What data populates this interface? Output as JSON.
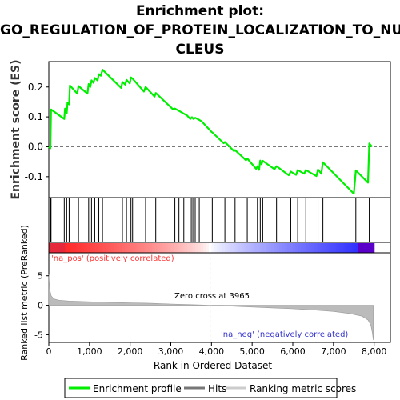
{
  "chart_data": {
    "type": "line",
    "title_lines": [
      "Enrichment plot:",
      "GO_REGULATION_OF_PROTEIN_LOCALIZATION_TO_NU",
      "CLEUS"
    ],
    "xlabel": "Rank in Ordered Dataset",
    "xlim": [
      0,
      8400
    ],
    "x_ticks": [
      0,
      1000,
      2000,
      3000,
      4000,
      5000,
      6000,
      7000,
      8000
    ],
    "x_tick_labels": [
      "0",
      "1,000",
      "2,000",
      "3,000",
      "4,000",
      "5,000",
      "6,000",
      "7,000",
      "8,000"
    ],
    "enrichment_panel": {
      "ylabel": "Enrichment score (ES)",
      "ylim": [
        -0.17,
        0.285
      ],
      "y_ticks": [
        -0.1,
        0.0,
        0.1,
        0.2
      ],
      "y_tick_labels": [
        "-0.1",
        "0.0",
        "0.1",
        "0.2"
      ],
      "series": [
        {
          "name": "Enrichment profile",
          "color": "#00ee00",
          "x": [
            0,
            40,
            55,
            380,
            400,
            440,
            460,
            500,
            520,
            700,
            730,
            950,
            980,
            1020,
            1050,
            1100,
            1130,
            1200,
            1230,
            1280,
            1320,
            1780,
            1810,
            1880,
            1910,
            1990,
            2020,
            2060,
            2340,
            2380,
            2600,
            2630,
            3050,
            3100,
            3400,
            3480,
            3520,
            3560,
            3600,
            3700,
            3760,
            4000,
            4020,
            4300,
            4330,
            4550,
            4580,
            4850,
            4880,
            5100,
            5130,
            5170,
            5200,
            5230,
            5260,
            5550,
            5600,
            5900,
            5950,
            6080,
            6120,
            6280,
            6320,
            6580,
            6620,
            6700,
            6740,
            7500,
            7550,
            7850,
            7880,
            7950
          ],
          "y": [
            0.0,
            -0.005,
            0.125,
            0.093,
            0.128,
            0.112,
            0.148,
            0.142,
            0.205,
            0.178,
            0.203,
            0.178,
            0.21,
            0.2,
            0.222,
            0.214,
            0.23,
            0.222,
            0.243,
            0.238,
            0.258,
            0.197,
            0.217,
            0.208,
            0.224,
            0.212,
            0.232,
            0.228,
            0.185,
            0.2,
            0.168,
            0.18,
            0.126,
            0.128,
            0.105,
            0.093,
            0.099,
            0.093,
            0.097,
            0.09,
            0.085,
            0.05,
            0.048,
            0.012,
            0.016,
            -0.014,
            -0.011,
            -0.045,
            -0.039,
            -0.074,
            -0.065,
            -0.077,
            -0.046,
            -0.058,
            -0.047,
            -0.075,
            -0.065,
            -0.095,
            -0.083,
            -0.094,
            -0.078,
            -0.09,
            -0.078,
            -0.098,
            -0.076,
            -0.09,
            -0.052,
            -0.157,
            -0.079,
            -0.12,
            0.011,
            0.0
          ]
        }
      ]
    },
    "hits": {
      "name": "Hits",
      "positions": [
        40,
        55,
        380,
        440,
        500,
        520,
        730,
        980,
        1050,
        1130,
        1230,
        1320,
        1810,
        1910,
        2020,
        2060,
        2380,
        2630,
        3100,
        3200,
        3320,
        3480,
        3520,
        3560,
        3600,
        3700,
        4020,
        4330,
        4580,
        4880,
        5130,
        5200,
        5260,
        5600,
        5950,
        6120,
        6320,
        6620,
        6740,
        7550,
        7880
      ]
    },
    "ranking_panel": {
      "ylabel": "Ranked list metric (PreRanked)",
      "ylim": [
        -6.3,
        8.9
      ],
      "y_ticks": [
        -5,
        0,
        5
      ],
      "y_tick_labels": [
        "-5",
        "0",
        "5"
      ],
      "series": [
        {
          "name": "Ranking metric scores",
          "color": "#bbbbbb",
          "x": [
            0,
            20,
            60,
            120,
            250,
            500,
            1000,
            1500,
            2000,
            2500,
            3000,
            3500,
            3965,
            4500,
            5000,
            5500,
            6000,
            6500,
            7000,
            7400,
            7700,
            7850,
            7920,
            7960,
            7980
          ],
          "y": [
            5.2,
            2.8,
            1.6,
            1.1,
            0.85,
            0.72,
            0.6,
            0.5,
            0.42,
            0.33,
            0.22,
            0.1,
            0.0,
            -0.15,
            -0.3,
            -0.45,
            -0.6,
            -0.8,
            -1.05,
            -1.4,
            -1.85,
            -2.5,
            -3.4,
            -4.8,
            -5.9
          ]
        }
      ],
      "zero_cross_label": "Zero cross at 3965",
      "zero_cross": 3965,
      "pos_label": "'na_pos' (positively correlated)",
      "neg_label": "'na_neg' (negatively correlated)"
    },
    "legend": {
      "position": "bottom",
      "entries": [
        {
          "label": "Enrichment profile",
          "color": "#00ee00"
        },
        {
          "label": "Hits",
          "color": "#777777"
        },
        {
          "label": "Ranking metric scores",
          "color": "#cccccc"
        }
      ]
    },
    "colors": {
      "profile": "#00ee00",
      "hit_line": "#000000",
      "zero_line": "#777777",
      "axis": "#000000",
      "pos_label": "#ff3333",
      "neg_label": "#3333cc",
      "metric_fill": "#bbbbbb"
    }
  }
}
